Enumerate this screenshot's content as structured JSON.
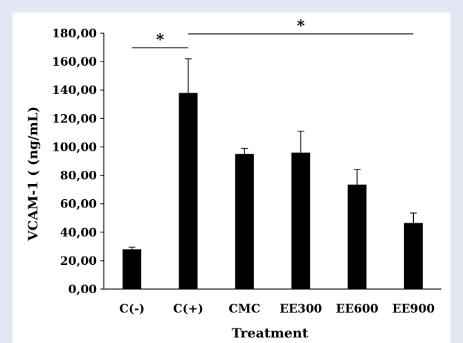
{
  "chart_data": {
    "type": "bar",
    "categories": [
      "C(-)",
      "C(+)",
      "CMC",
      "EE300",
      "EE600",
      "EE900"
    ],
    "values": [
      28,
      138,
      95,
      96,
      73.5,
      46.5
    ],
    "error_upper": [
      29.5,
      162,
      99,
      111,
      84,
      53.5
    ],
    "ylim": [
      0,
      180
    ],
    "yticks": [
      "0,00",
      "20,00",
      "40,00",
      "60,00",
      "80,00",
      "100,00",
      "120,00",
      "140,00",
      "160,00",
      "180,00"
    ],
    "ylabel": "VCAM-1 ( (ng/mL)",
    "xlabel": "Treatment",
    "bar_color": "#000000",
    "grid": false,
    "significance": [
      {
        "label": "*",
        "from": "C(-)",
        "to": "C(+)"
      },
      {
        "label": "*",
        "from": "C(+)",
        "to": "EE900"
      }
    ]
  }
}
